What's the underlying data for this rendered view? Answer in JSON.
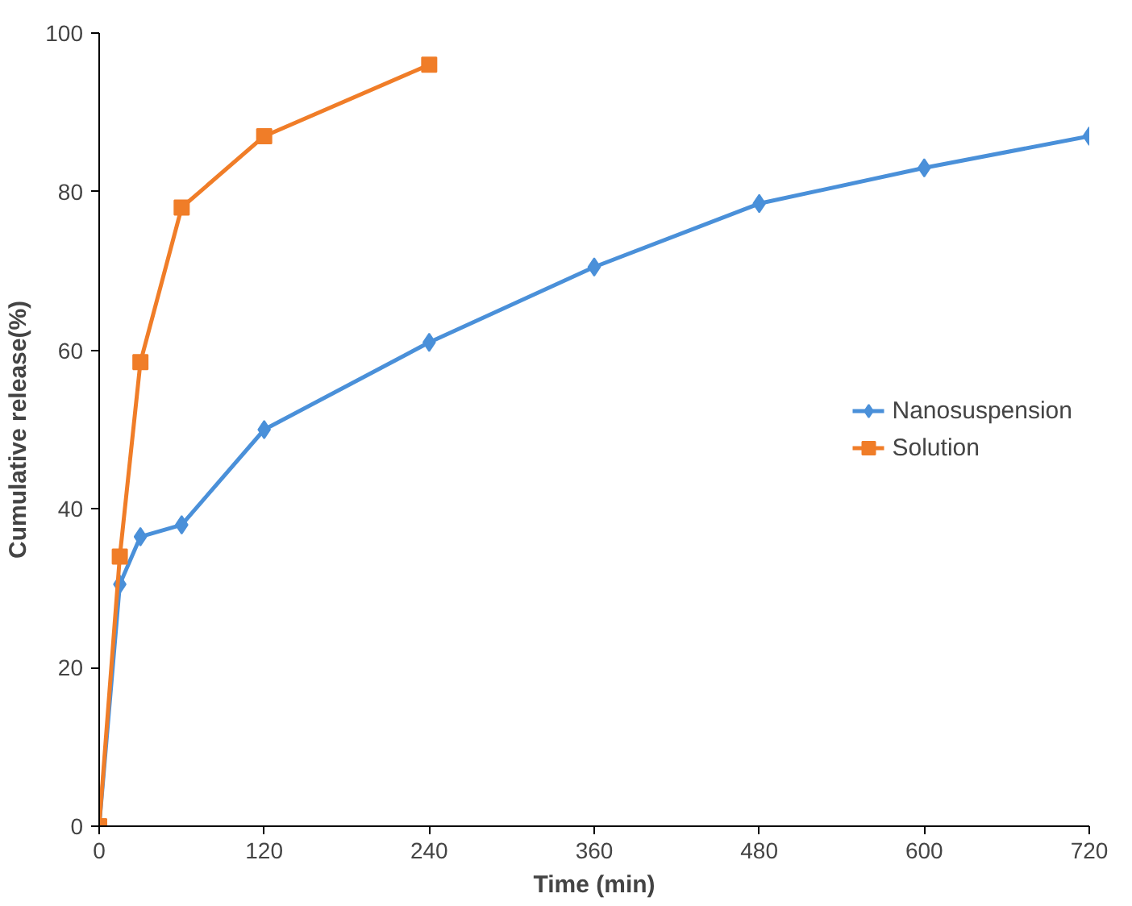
{
  "chart_data": {
    "type": "line",
    "xlabel": "Time (min)",
    "ylabel": "Cumulative release(%)",
    "xlim": [
      0,
      720
    ],
    "ylim": [
      0,
      100
    ],
    "xticks": [
      0,
      120,
      240,
      360,
      480,
      600,
      720
    ],
    "yticks": [
      0,
      20,
      40,
      60,
      80,
      100
    ],
    "grid": false,
    "legend": "right",
    "series": [
      {
        "name": "Nanosuspension",
        "color": "#4a90d9",
        "marker": "diamond",
        "x": [
          0,
          15,
          30,
          60,
          120,
          240,
          360,
          480,
          600,
          720
        ],
        "values": [
          0,
          30.5,
          36.5,
          38,
          50,
          61,
          70.5,
          78.5,
          83,
          87
        ]
      },
      {
        "name": "Solution",
        "color": "#f07d28",
        "marker": "square",
        "x": [
          0,
          15,
          30,
          60,
          120,
          240
        ],
        "values": [
          0,
          34,
          58.5,
          78,
          87,
          96
        ]
      }
    ]
  }
}
